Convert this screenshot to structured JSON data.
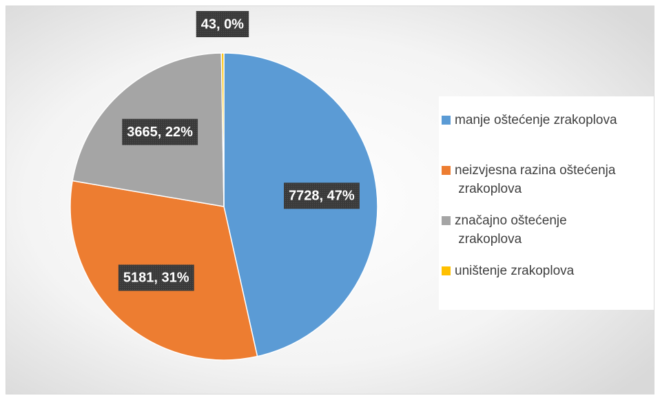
{
  "chart_data": {
    "type": "pie",
    "categories": [
      "manje oštećenje zrakoplova",
      "neizvjesna razina oštećenja zrakoplova",
      "značajno oštećenje zrakoplova",
      "uništenje zrakoplova"
    ],
    "values": [
      7728,
      5181,
      3665,
      43
    ],
    "value_labels": [
      "7728, 47%",
      "5181, 31%",
      "3665, 22%",
      "43, 0%"
    ],
    "colors": [
      "#5b9bd5",
      "#ed7d31",
      "#a5a5a5",
      "#ffc000"
    ],
    "legend": "right"
  }
}
